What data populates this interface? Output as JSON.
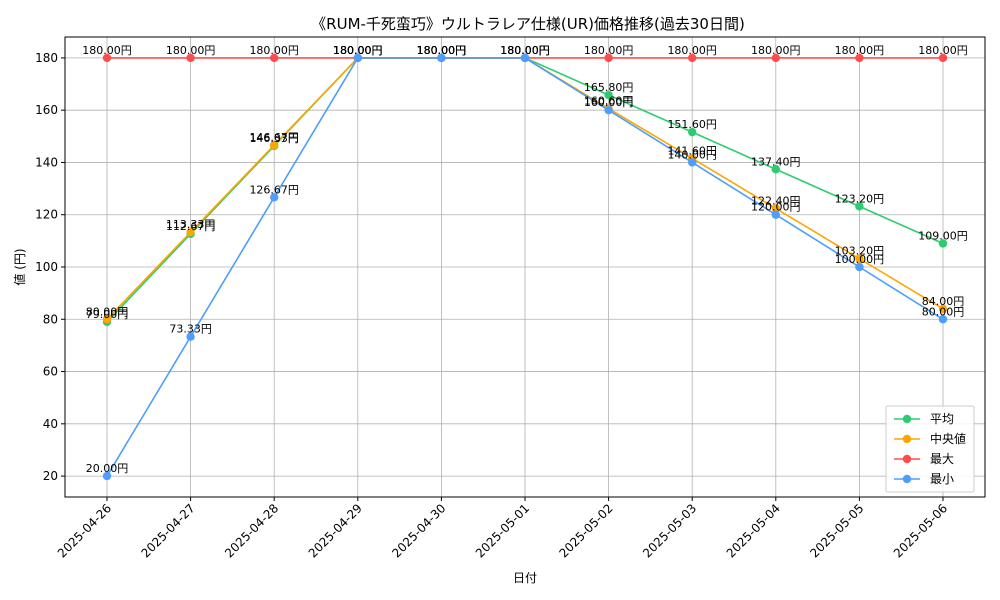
{
  "chart_data": {
    "type": "line",
    "title": "《RUM-千死蛮巧》ウルトラレア仕様(UR)価格推移(過去30日間)",
    "xlabel": "日付",
    "ylabel": "値 (円)",
    "ylim": [
      12,
      188
    ],
    "yticks": [
      20,
      40,
      60,
      80,
      100,
      120,
      140,
      160,
      180
    ],
    "grid": true,
    "legend_position": "bottom-right",
    "x": [
      "2025-04-26",
      "2025-04-27",
      "2025-04-28",
      "2025-04-29",
      "2025-04-30",
      "2025-05-01",
      "2025-05-02",
      "2025-05-03",
      "2025-05-04",
      "2025-05-05",
      "2025-05-06"
    ],
    "series": [
      {
        "name": "平均",
        "color": "#2ecc71",
        "values": [
          79.0,
          112.67,
          146.33,
          180.0,
          180.0,
          180.0,
          165.8,
          151.6,
          137.4,
          123.2,
          109.0
        ],
        "labels": [
          "79.00円",
          "112.67円",
          "146.33円",
          "180.00円",
          "180.00円",
          "180.00円",
          "165.80円",
          "151.60円",
          "137.40円",
          "123.20円",
          "109.00円"
        ]
      },
      {
        "name": "中央値",
        "color": "#ffa500",
        "values": [
          80.0,
          113.33,
          146.67,
          180.0,
          180.0,
          180.0,
          160.6,
          141.6,
          122.4,
          103.2,
          84.0
        ],
        "labels": [
          "80.00円",
          "113.33円",
          "146.67円",
          "180.00円",
          "180.00円",
          "180.00円",
          "160.60円",
          "141.60円",
          "122.40円",
          "103.20円",
          "84.00円"
        ]
      },
      {
        "name": "最大",
        "color": "#ff4d4d",
        "values": [
          180.0,
          180.0,
          180.0,
          180.0,
          180.0,
          180.0,
          180.0,
          180.0,
          180.0,
          180.0,
          180.0
        ],
        "labels": [
          "180.00円",
          "180.00円",
          "180.00円",
          "180.00円",
          "180.00円",
          "180.00円",
          "180.00円",
          "180.00円",
          "180.00円",
          "180.00円",
          "180.00円"
        ]
      },
      {
        "name": "最小",
        "color": "#4d9eff",
        "values": [
          20.0,
          73.33,
          126.67,
          180.0,
          180.0,
          180.0,
          160.0,
          140.0,
          120.0,
          100.0,
          80.0
        ],
        "labels": [
          "20.00円",
          "73.33円",
          "126.67円",
          "180.00円",
          "180.00円",
          "180.00円",
          "160.00円",
          "140.00円",
          "120.00円",
          "100.00円",
          "80.00円"
        ]
      }
    ]
  }
}
